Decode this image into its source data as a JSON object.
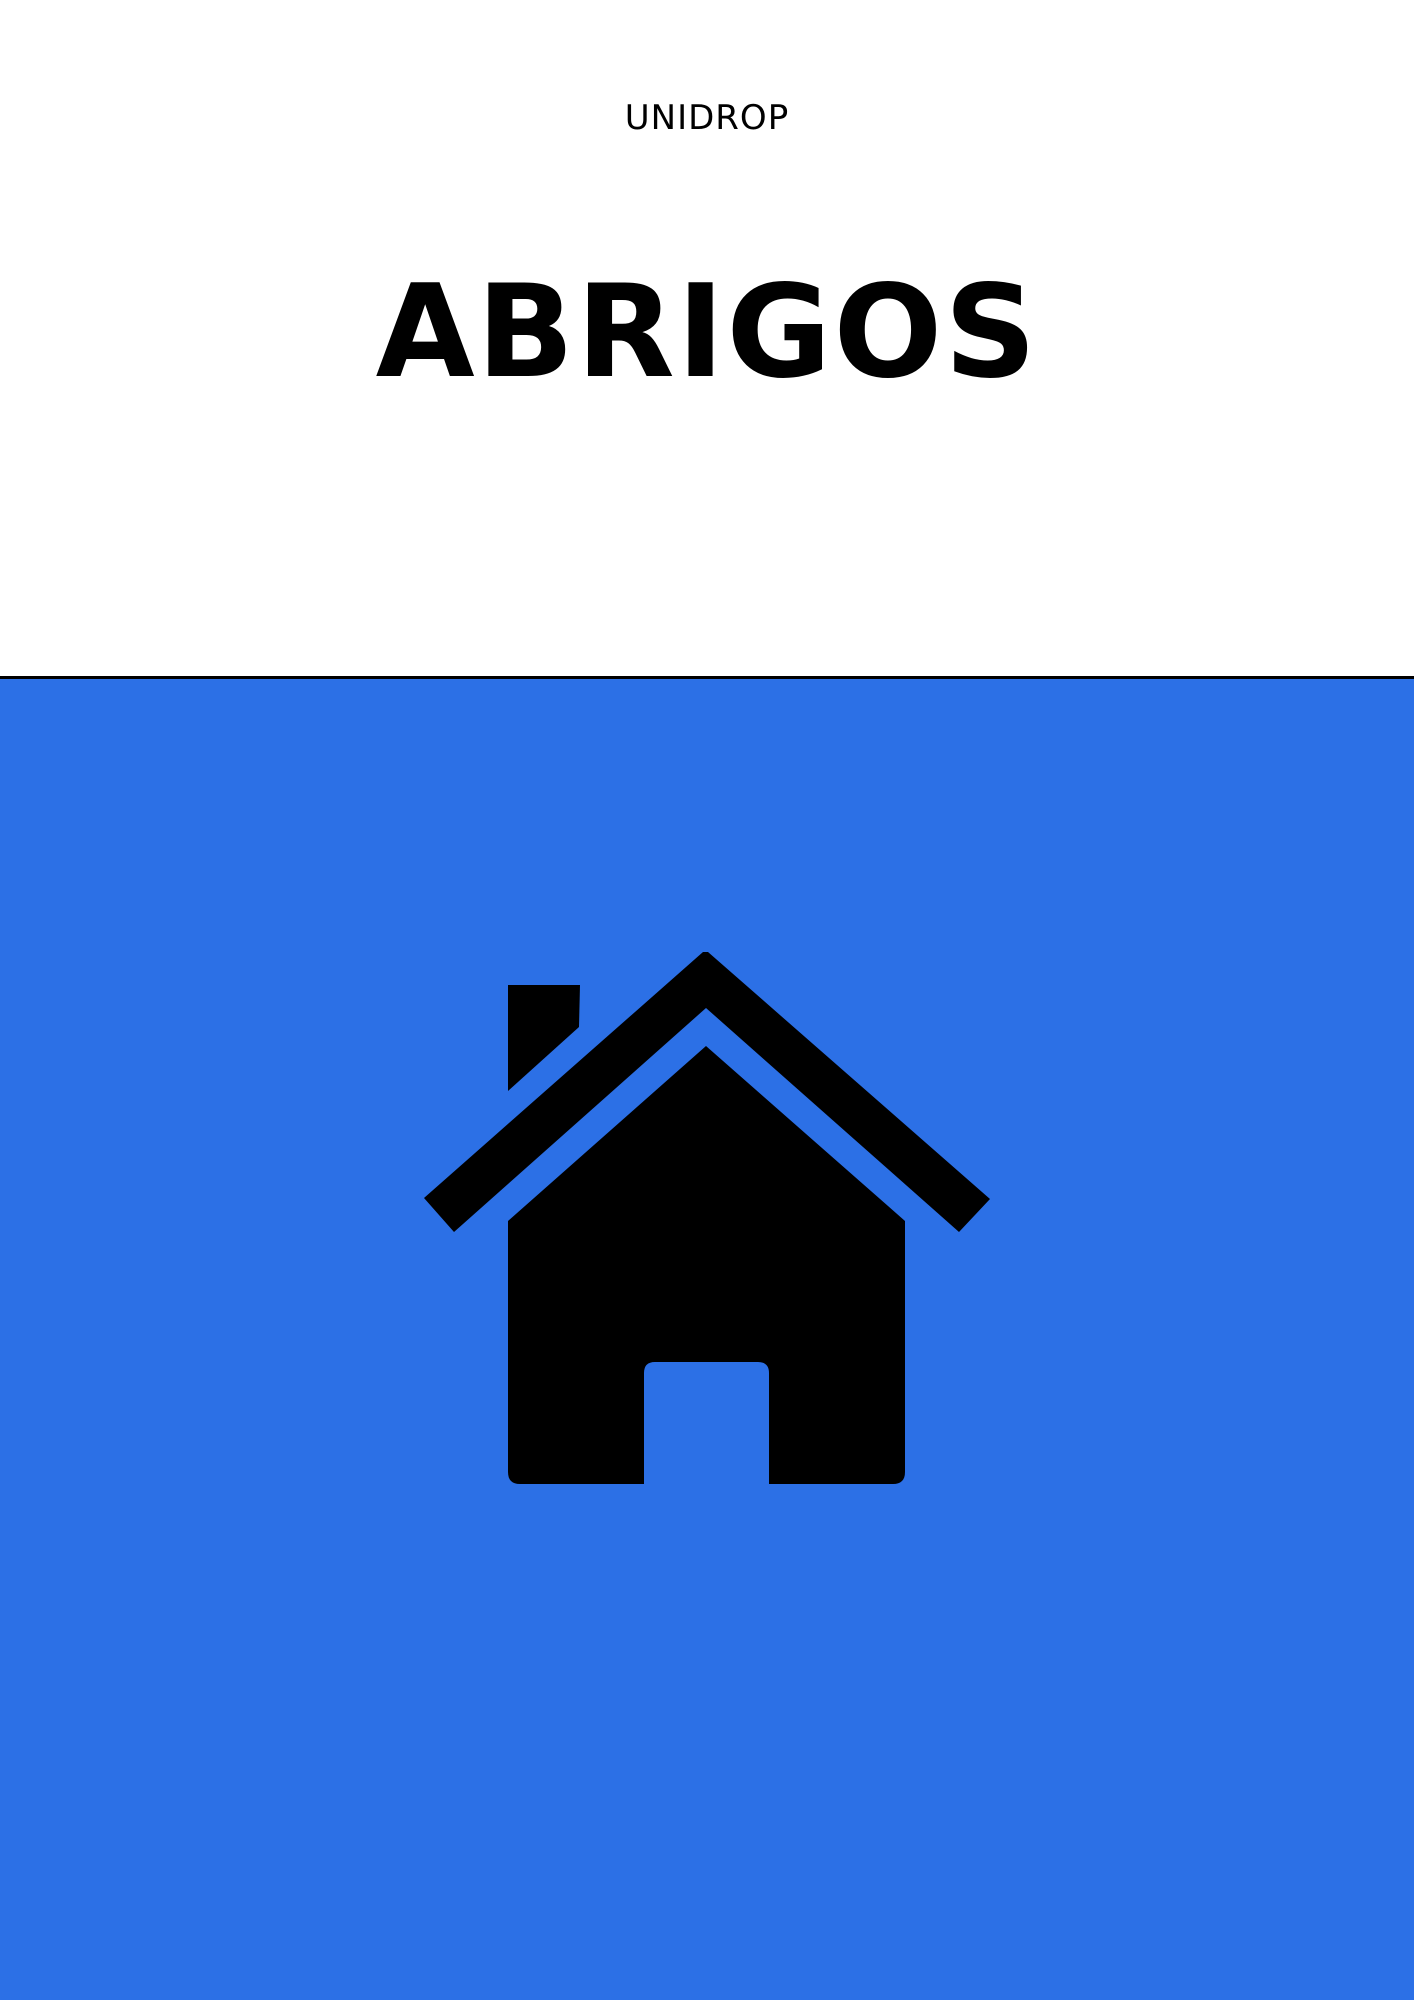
{
  "brand": "UNIDROP",
  "title": "ABRIGOS",
  "colors": {
    "background_top": "#ffffff",
    "background_bottom": "#2c70e6",
    "text": "#000000",
    "icon": "#000000",
    "divider": "#000000"
  },
  "icon": "house-icon"
}
